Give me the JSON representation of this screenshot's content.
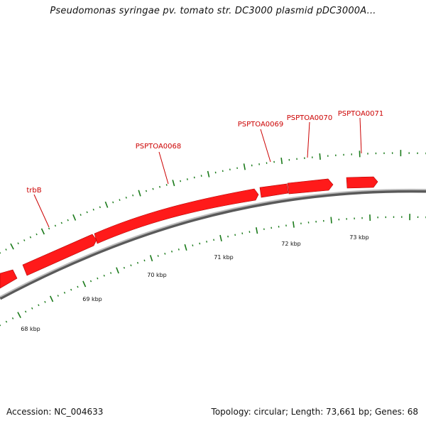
{
  "title": "Pseudomonas syringae pv. tomato str. DC3000 plasmid pDC3000A...",
  "footer": {
    "accession": "Accession: NC_004633",
    "summary": "Topology: circular; Length: 73,661 bp; Genes: 68"
  },
  "colors": {
    "gene_fill": "#ff1a1a",
    "gene_label": "#cc0000",
    "backbone": "#8c8c8c",
    "tick": "#1a7a1a"
  },
  "map": {
    "scale_labels": [
      "68 kbp",
      "69 kbp",
      "70 kbp",
      "71 kbp",
      "72 kbp",
      "73 kbp"
    ],
    "gene_labels": [
      "trbB",
      "PSPTOA0068",
      "PSPTOA0069",
      "PSPTOA0070",
      "PSPTOA0071"
    ]
  }
}
